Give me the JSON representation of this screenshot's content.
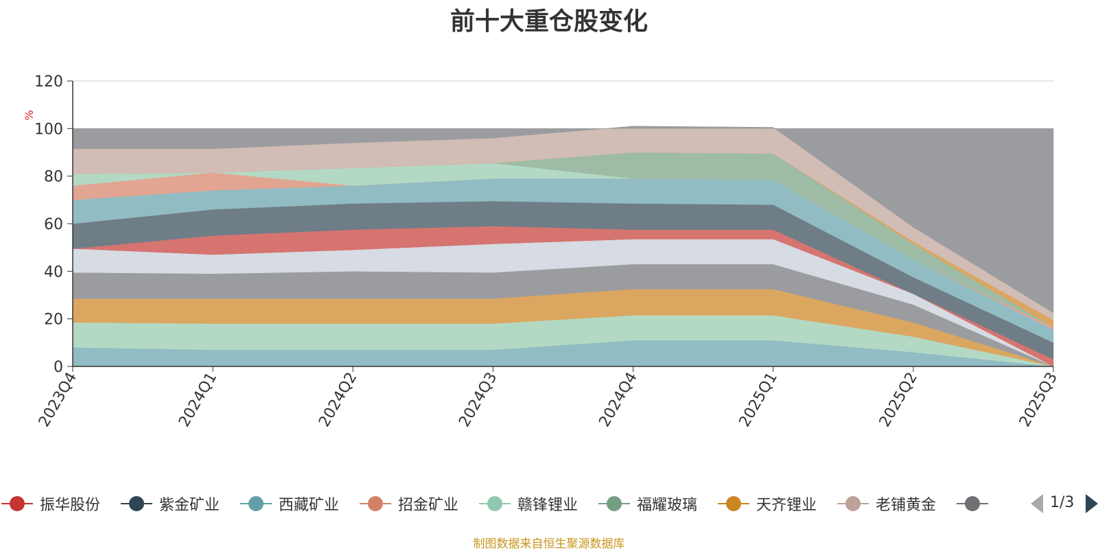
{
  "chart_data": {
    "type": "area",
    "title": "前十大重仓股变化",
    "ylabel": "%",
    "xlabel": "",
    "ylim": [
      0,
      120
    ],
    "yticks": [
      0,
      20,
      40,
      60,
      80,
      100,
      120
    ],
    "grid": true,
    "stacked": true,
    "categories": [
      "2023Q4",
      "2024Q1",
      "2024Q2",
      "2024Q3",
      "2024Q4",
      "2025Q1",
      "2025Q2",
      "2025Q3"
    ],
    "series": [
      {
        "name": "",
        "color": "#91bcc3",
        "values": [
          8,
          7,
          7,
          7,
          11,
          11,
          6,
          0
        ]
      },
      {
        "name": "",
        "color": "#b3d9c4",
        "values": [
          10.5,
          11,
          11,
          11,
          10.5,
          10.5,
          6.5,
          0
        ]
      },
      {
        "name": "",
        "color": "#dba760",
        "values": [
          10,
          10.5,
          10.5,
          10.5,
          11,
          11,
          6,
          0
        ]
      },
      {
        "name": "",
        "color": "#9b9c9f",
        "values": [
          11,
          10.5,
          11.5,
          11,
          10.5,
          10.5,
          7.5,
          0
        ]
      },
      {
        "name": "",
        "color": "#d7dbe3",
        "values": [
          10,
          8,
          9,
          12,
          10.5,
          10.5,
          4.5,
          0
        ]
      },
      {
        "name": "振华股份",
        "color": "#d67470",
        "values": [
          0,
          8,
          8.5,
          7.5,
          4,
          4,
          0,
          3
        ]
      },
      {
        "name": "紫金矿业",
        "color": "#6f7d87",
        "values": [
          10.5,
          11,
          11,
          10.5,
          11,
          10.5,
          7,
          7
        ]
      },
      {
        "name": "西藏矿业",
        "color": "#91bcc3",
        "values": [
          10,
          8,
          7.5,
          9.5,
          10.5,
          10.5,
          7.5,
          5.5
        ]
      },
      {
        "name": "招金矿业",
        "color": "#e2a592",
        "values": [
          6,
          7.5,
          0,
          0,
          0,
          0,
          0,
          1
        ]
      },
      {
        "name": "赣锋锂业",
        "color": "#b3d9c4",
        "values": [
          5,
          0,
          7.5,
          6.5,
          0,
          0,
          0,
          0
        ]
      },
      {
        "name": "福耀玻璃",
        "color": "#9dbba5",
        "values": [
          0,
          0,
          0,
          0,
          11,
          11,
          6.5,
          0
        ]
      },
      {
        "name": "天齐锂业",
        "color": "#dba760",
        "values": [
          0,
          0,
          0,
          0,
          0,
          0,
          1,
          3
        ]
      },
      {
        "name": "老铺黄金",
        "color": "#d1bcb6",
        "values": [
          10.5,
          10,
          10.5,
          10.5,
          11,
          11,
          6,
          3
        ]
      }
    ],
    "remainder_color": "#9b9c9f",
    "legend_position": "bottom",
    "legend": [
      {
        "name": "振华股份",
        "color": "#c23531"
      },
      {
        "name": "紫金矿业",
        "color": "#2f4554"
      },
      {
        "name": "西藏矿业",
        "color": "#61a0a8"
      },
      {
        "name": "招金矿业",
        "color": "#d48265"
      },
      {
        "name": "赣锋锂业",
        "color": "#91c7ae"
      },
      {
        "name": "福耀玻璃",
        "color": "#749f83"
      },
      {
        "name": "天齐锂业",
        "color": "#ca8622"
      },
      {
        "name": "老铺黄金",
        "color": "#bda29a"
      },
      {
        "name": "",
        "color": "#6e7074"
      }
    ],
    "legend_page": "1/3"
  },
  "source_note": "制图数据来自恒生聚源数据库"
}
